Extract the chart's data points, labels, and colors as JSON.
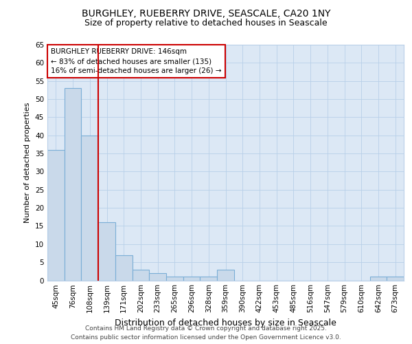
{
  "title1": "BURGHLEY, RUEBERRY DRIVE, SEASCALE, CA20 1NY",
  "title2": "Size of property relative to detached houses in Seascale",
  "xlabel": "Distribution of detached houses by size in Seascale",
  "ylabel": "Number of detached properties",
  "categories": [
    "45sqm",
    "76sqm",
    "108sqm",
    "139sqm",
    "171sqm",
    "202sqm",
    "233sqm",
    "265sqm",
    "296sqm",
    "328sqm",
    "359sqm",
    "390sqm",
    "422sqm",
    "453sqm",
    "485sqm",
    "516sqm",
    "547sqm",
    "579sqm",
    "610sqm",
    "642sqm",
    "673sqm"
  ],
  "values": [
    36,
    53,
    40,
    16,
    7,
    3,
    2,
    1,
    1,
    1,
    3,
    0,
    0,
    0,
    0,
    0,
    0,
    0,
    0,
    1,
    1
  ],
  "bar_color": "#c9d9ea",
  "bar_edge_color": "#7aaed6",
  "vline_color": "#cc0000",
  "vline_at_bin": 3,
  "annotation_box_text": "BURGHLEY RUEBERRY DRIVE: 146sqm\n← 83% of detached houses are smaller (135)\n16% of semi-detached houses are larger (26) →",
  "annotation_box_edge_color": "#cc0000",
  "ylim": [
    0,
    65
  ],
  "yticks": [
    0,
    5,
    10,
    15,
    20,
    25,
    30,
    35,
    40,
    45,
    50,
    55,
    60,
    65
  ],
  "fig_bg_color": "#ffffff",
  "plot_bg_color": "#dce8f5",
  "grid_color": "#b8cfe8",
  "footer": "Contains HM Land Registry data © Crown copyright and database right 2025.\nContains public sector information licensed under the Open Government Licence v3.0.",
  "title_fontsize": 10,
  "subtitle_fontsize": 9,
  "tick_fontsize": 7.5,
  "ylabel_fontsize": 8,
  "xlabel_fontsize": 9,
  "footer_fontsize": 6.5,
  "annot_fontsize": 7.5
}
